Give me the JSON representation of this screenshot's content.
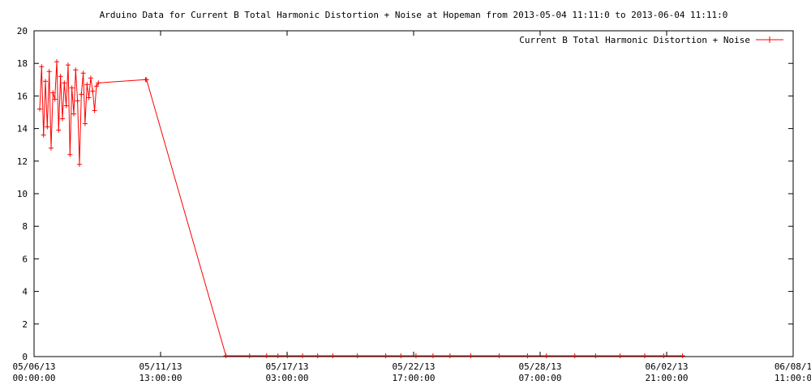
{
  "chart_data": {
    "type": "line",
    "title": "Arduino Data for Current B Total Harmonic Distortion + Noise at Hopeman from 2013-05-04 11:11:0 to 2013-06-04 11:11:0",
    "xlabel": "",
    "ylabel": "",
    "ylim": [
      0,
      20
    ],
    "yticks": [
      0,
      2,
      4,
      6,
      8,
      10,
      12,
      14,
      16,
      18,
      20
    ],
    "xlim": [
      "2013-05-06 00:00:00",
      "2013-06-08 11:00:00"
    ],
    "xticks": [
      {
        "date": "05/06/13",
        "time": "00:00:00"
      },
      {
        "date": "05/11/13",
        "time": "13:00:00"
      },
      {
        "date": "05/17/13",
        "time": "03:00:00"
      },
      {
        "date": "05/22/13",
        "time": "17:00:00"
      },
      {
        "date": "05/28/13",
        "time": "07:00:00"
      },
      {
        "date": "06/02/13",
        "time": "21:00:00"
      },
      {
        "date": "06/08/1",
        "time": "11:00:0"
      }
    ],
    "grid": false,
    "legend_position": "top-right",
    "series": [
      {
        "name": "Current B Total Harmonic Distortion + Noise",
        "color": "#ff0000",
        "x": [
          "2013-05-06 06:00",
          "2013-05-06 08:00",
          "2013-05-06 10:00",
          "2013-05-06 12:00",
          "2013-05-06 14:00",
          "2013-05-06 16:00",
          "2013-05-06 18:00",
          "2013-05-06 20:00",
          "2013-05-06 22:00",
          "2013-05-07 00:00",
          "2013-05-07 02:00",
          "2013-05-07 04:00",
          "2013-05-07 06:00",
          "2013-05-07 08:00",
          "2013-05-07 10:00",
          "2013-05-07 12:00",
          "2013-05-07 14:00",
          "2013-05-07 16:00",
          "2013-05-07 18:00",
          "2013-05-07 20:00",
          "2013-05-07 22:00",
          "2013-05-08 00:00",
          "2013-05-08 02:00",
          "2013-05-08 04:00",
          "2013-05-08 06:00",
          "2013-05-08 08:00",
          "2013-05-08 10:00",
          "2013-05-08 12:00",
          "2013-05-08 14:00",
          "2013-05-08 16:00",
          "2013-05-08 18:00",
          "2013-05-08 20:00",
          "2013-05-10 22:00",
          "2013-05-10 23:00",
          "2013-05-14 11:00",
          "2013-05-15 12:00",
          "2013-05-16 06:00",
          "2013-05-16 18:00",
          "2013-05-17 04:00",
          "2013-05-17 20:00",
          "2013-05-18 12:00",
          "2013-05-19 04:00",
          "2013-05-20 06:00",
          "2013-05-21 12:00",
          "2013-05-22 04:00",
          "2013-05-22 20:00",
          "2013-05-23 14:00",
          "2013-05-24 08:00",
          "2013-05-25 06:00",
          "2013-05-26 12:00",
          "2013-05-27 18:00",
          "2013-05-28 14:00",
          "2013-05-29 20:00",
          "2013-05-30 18:00",
          "2013-05-31 20:00",
          "2013-06-01 22:00",
          "2013-06-02 18:00",
          "2013-06-03 14:00"
        ],
        "values": [
          15.2,
          17.8,
          13.6,
          16.9,
          14.1,
          17.5,
          12.8,
          16.2,
          15.8,
          18.1,
          13.9,
          17.2,
          14.6,
          16.8,
          15.4,
          17.9,
          12.4,
          16.5,
          14.9,
          17.6,
          15.7,
          11.8,
          16.1,
          17.4,
          14.3,
          16.7,
          15.9,
          17.1,
          16.3,
          15.1,
          16.6,
          16.8,
          17.0,
          17.0,
          0.05,
          0.05,
          0.05,
          0.05,
          0.05,
          0.05,
          0.05,
          0.05,
          0.05,
          0.05,
          0.05,
          0.05,
          0.05,
          0.05,
          0.05,
          0.05,
          0.05,
          0.05,
          0.05,
          0.05,
          0.05,
          0.05,
          0.05,
          0.05
        ]
      }
    ]
  }
}
